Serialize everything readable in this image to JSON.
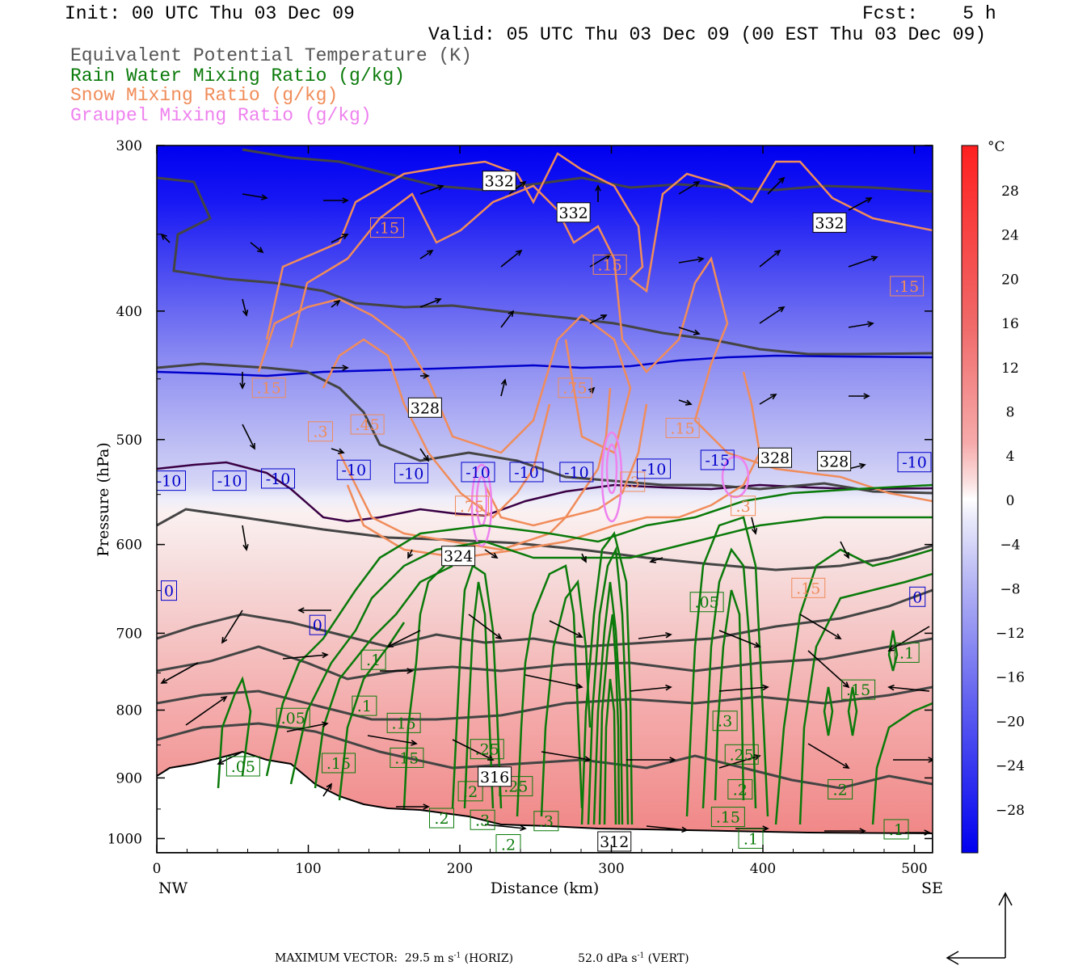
{
  "header": {
    "init": "Init: 00 UTC Thu 03 Dec 09",
    "fcst": "Fcst:    5 h",
    "valid": "Valid: 05 UTC Thu 03 Dec 09 (00 EST Thu 03 Dec 09)"
  },
  "legend_titles": [
    {
      "text": "Equivalent Potential Temperature (K)",
      "color": "#555555"
    },
    {
      "text": "Rain Water Mixing Ratio (g/kg)",
      "color": "#0a7a0a"
    },
    {
      "text": "Snow Mixing Ratio (g/kg)",
      "color": "#f08c5a"
    },
    {
      "text": "Graupel Mixing Ratio (g/kg)",
      "color": "#ee82ee"
    }
  ],
  "axes": {
    "ylabel": "Pressure (hPa)",
    "xlabel": "Distance (km)",
    "left_end": "NW",
    "right_end": "SE"
  },
  "colorbar": {
    "unit": "°C",
    "ticks": [
      "28",
      "24",
      "20",
      "16",
      "12",
      "8",
      "4",
      "0",
      "−4",
      "−8",
      "−12",
      "−16",
      "−20",
      "−24",
      "−28"
    ]
  },
  "footer": {
    "text": "MAXIMUM VECTOR:  29.5 m s",
    "horiz": "29.5",
    "horiz_unit": "(HORIZ)",
    "vert": "52.0 dPa s",
    "vert_unit": "(VERT)"
  },
  "chart_data": {
    "type": "contour",
    "x_range": [
      0,
      512
    ],
    "y_range": [
      300,
      1025
    ],
    "y_scale": "log",
    "x_ticks": [
      0,
      100,
      200,
      300,
      400,
      500
    ],
    "y_ticks": [
      300,
      400,
      500,
      600,
      700,
      800,
      900,
      1000
    ],
    "temperature_isotherm_labels": [
      {
        "x": 8,
        "p": 537,
        "text": "-10"
      },
      {
        "x": 48,
        "p": 537,
        "text": "-10"
      },
      {
        "x": 80,
        "p": 535,
        "text": "-10"
      },
      {
        "x": 130,
        "p": 527,
        "text": "-10"
      },
      {
        "x": 168,
        "p": 530,
        "text": "-10"
      },
      {
        "x": 212,
        "p": 529,
        "text": "-10"
      },
      {
        "x": 244,
        "p": 529,
        "text": "-10"
      },
      {
        "x": 277,
        "p": 529,
        "text": "-10"
      },
      {
        "x": 328,
        "p": 526,
        "text": "-10"
      },
      {
        "x": 370,
        "p": 518,
        "text": "-15"
      },
      {
        "x": 500,
        "p": 520,
        "text": "-10"
      },
      {
        "x": 8,
        "p": 650,
        "text": "0"
      },
      {
        "x": 106,
        "p": 690,
        "text": "0"
      },
      {
        "x": 502,
        "p": 657,
        "text": "0"
      }
    ],
    "theta_e_labels": [
      {
        "x": 226,
        "p": 319,
        "text": "332"
      },
      {
        "x": 275,
        "p": 337,
        "text": "332"
      },
      {
        "x": 444,
        "p": 343,
        "text": "332"
      },
      {
        "x": 177,
        "p": 473,
        "text": "328"
      },
      {
        "x": 408,
        "p": 516,
        "text": "328"
      },
      {
        "x": 447,
        "p": 519,
        "text": "328"
      },
      {
        "x": 199,
        "p": 612,
        "text": "324"
      },
      {
        "x": 223,
        "p": 898,
        "text": "316"
      },
      {
        "x": 302,
        "p": 1005,
        "text": "312"
      }
    ],
    "rain_labels": [
      {
        "x": 363,
        "p": 663,
        "text": ".05"
      },
      {
        "x": 143,
        "p": 733,
        "text": ".1"
      },
      {
        "x": 495,
        "p": 724,
        "text": ".1"
      },
      {
        "x": 463,
        "p": 772,
        "text": ".15"
      },
      {
        "x": 137,
        "p": 794,
        "text": ".1"
      },
      {
        "x": 90,
        "p": 811,
        "text": ".05"
      },
      {
        "x": 163,
        "p": 818,
        "text": ".15"
      },
      {
        "x": 218,
        "p": 856,
        "text": ".25"
      },
      {
        "x": 165,
        "p": 869,
        "text": ".15"
      },
      {
        "x": 57,
        "p": 882,
        "text": ".05"
      },
      {
        "x": 120,
        "p": 877,
        "text": ".15"
      },
      {
        "x": 237,
        "p": 913,
        "text": ".25"
      },
      {
        "x": 375,
        "p": 815,
        "text": ".3"
      },
      {
        "x": 386,
        "p": 864,
        "text": ".25"
      },
      {
        "x": 385,
        "p": 918,
        "text": ".2"
      },
      {
        "x": 451,
        "p": 918,
        "text": ".2"
      },
      {
        "x": 377,
        "p": 963,
        "text": ".15"
      },
      {
        "x": 488,
        "p": 984,
        "text": ".1"
      },
      {
        "x": 207,
        "p": 921,
        "text": ".2"
      },
      {
        "x": 188,
        "p": 965,
        "text": ".2"
      },
      {
        "x": 215,
        "p": 968,
        "text": ".3"
      },
      {
        "x": 257,
        "p": 970,
        "text": ".3"
      },
      {
        "x": 232,
        "p": 1010,
        "text": ".2"
      },
      {
        "x": 392,
        "p": 1000,
        "text": ".1"
      }
    ],
    "snow_labels": [
      {
        "x": 152,
        "p": 346,
        "text": ".15"
      },
      {
        "x": 299,
        "p": 369,
        "text": ".15"
      },
      {
        "x": 495,
        "p": 383,
        "text": ".15"
      },
      {
        "x": 74,
        "p": 457,
        "text": ".15"
      },
      {
        "x": 276,
        "p": 457,
        "text": ".75"
      },
      {
        "x": 139,
        "p": 487,
        "text": ".45"
      },
      {
        "x": 108,
        "p": 493,
        "text": ".3"
      },
      {
        "x": 347,
        "p": 490,
        "text": ".15"
      },
      {
        "x": 208,
        "p": 561,
        "text": ".75"
      },
      {
        "x": 314,
        "p": 538,
        "text": ".3"
      },
      {
        "x": 387,
        "p": 561,
        "text": ".3"
      },
      {
        "x": 430,
        "p": 647,
        "text": ".15"
      }
    ],
    "max_vector_horiz": "29.5 m s-1",
    "max_vector_vert": "52.0 dPa s-1"
  }
}
